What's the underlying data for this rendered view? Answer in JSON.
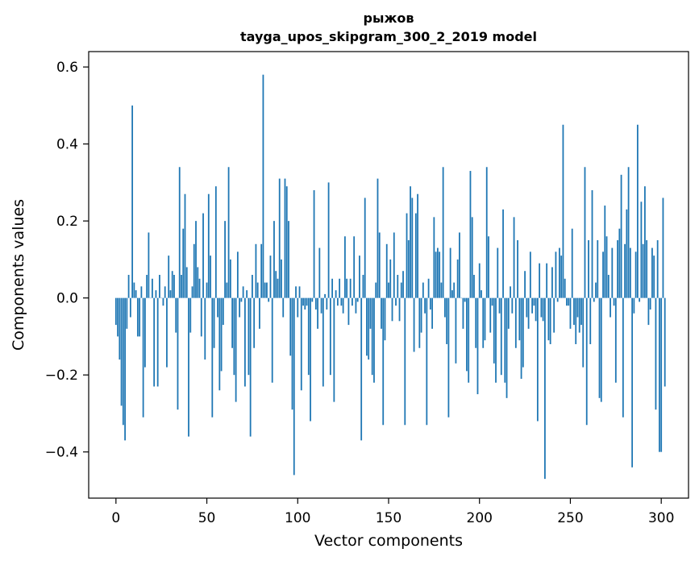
{
  "chart_data": {
    "type": "bar",
    "title_lines": [
      "рыжов",
      "tayga_upos_skipgram_300_2_2019 model"
    ],
    "xlabel": "Vector components",
    "ylabel": "Components values",
    "xlim": [
      -15,
      315
    ],
    "ylim": [
      -0.52,
      0.64
    ],
    "xticks": [
      0,
      50,
      100,
      150,
      200,
      250,
      300
    ],
    "yticks": [
      -0.4,
      -0.2,
      0.0,
      0.2,
      0.4,
      0.6
    ],
    "ytick_labels": [
      "−0.4",
      "−0.2",
      "0.0",
      "0.2",
      "0.4",
      "0.6"
    ],
    "grid": false,
    "bar_color": "#1f77b4",
    "values": [
      -0.07,
      -0.1,
      -0.16,
      -0.28,
      -0.33,
      -0.37,
      -0.08,
      0.06,
      -0.05,
      0.5,
      0.04,
      0.02,
      -0.1,
      -0.1,
      0.03,
      -0.31,
      -0.18,
      0.06,
      0.17,
      0.0,
      0.05,
      -0.23,
      0.02,
      -0.23,
      0.06,
      0.0,
      -0.02,
      0.03,
      -0.18,
      0.11,
      0.02,
      0.07,
      0.06,
      -0.09,
      -0.29,
      0.34,
      0.06,
      0.18,
      0.27,
      0.08,
      -0.36,
      -0.09,
      0.03,
      0.14,
      0.2,
      0.08,
      0.05,
      -0.1,
      0.22,
      -0.16,
      0.04,
      0.27,
      0.11,
      -0.31,
      -0.13,
      0.29,
      -0.05,
      -0.24,
      -0.19,
      -0.07,
      0.2,
      0.04,
      0.34,
      0.1,
      -0.13,
      -0.2,
      -0.27,
      0.12,
      -0.05,
      -0.01,
      0.03,
      -0.23,
      0.02,
      -0.2,
      -0.36,
      0.06,
      -0.13,
      0.14,
      0.04,
      -0.08,
      0.14,
      0.58,
      0.04,
      0.04,
      -0.01,
      0.11,
      -0.22,
      0.2,
      0.07,
      0.05,
      0.31,
      0.1,
      -0.05,
      0.31,
      0.29,
      0.2,
      -0.15,
      -0.29,
      -0.46,
      0.03,
      -0.05,
      0.03,
      -0.24,
      -0.02,
      -0.03,
      -0.02,
      -0.2,
      -0.32,
      -0.01,
      0.28,
      -0.03,
      -0.08,
      0.13,
      -0.04,
      -0.23,
      0.01,
      -0.03,
      0.3,
      -0.2,
      0.05,
      -0.27,
      0.02,
      -0.02,
      0.05,
      -0.02,
      -0.04,
      0.16,
      0.05,
      -0.07,
      0.05,
      -0.02,
      0.16,
      -0.04,
      -0.01,
      0.11,
      -0.37,
      0.06,
      0.26,
      -0.15,
      -0.16,
      -0.08,
      -0.2,
      -0.22,
      0.04,
      0.31,
      0.17,
      -0.08,
      -0.33,
      -0.11,
      0.14,
      0.04,
      0.1,
      -0.06,
      0.17,
      -0.02,
      0.06,
      -0.06,
      0.04,
      0.07,
      -0.33,
      0.22,
      0.15,
      0.29,
      0.26,
      -0.14,
      0.22,
      0.27,
      -0.13,
      -0.09,
      0.04,
      -0.04,
      -0.33,
      0.05,
      -0.03,
      -0.08,
      0.21,
      0.12,
      0.13,
      0.12,
      0.04,
      0.34,
      -0.05,
      -0.12,
      -0.31,
      0.13,
      0.02,
      0.04,
      -0.17,
      0.1,
      0.17,
      0.0,
      -0.08,
      -0.01,
      -0.19,
      -0.22,
      0.33,
      0.21,
      0.06,
      -0.13,
      -0.25,
      0.09,
      0.02,
      -0.13,
      -0.11,
      0.34,
      0.16,
      -0.09,
      -0.02,
      -0.17,
      -0.22,
      0.13,
      -0.04,
      -0.2,
      0.23,
      -0.22,
      -0.26,
      -0.08,
      0.03,
      -0.04,
      0.21,
      -0.13,
      0.15,
      -0.11,
      -0.21,
      -0.18,
      0.07,
      -0.05,
      -0.08,
      0.12,
      -0.04,
      -0.02,
      -0.06,
      -0.32,
      0.09,
      -0.05,
      -0.06,
      -0.47,
      0.09,
      -0.11,
      -0.12,
      0.08,
      -0.09,
      0.12,
      -0.01,
      0.13,
      0.11,
      0.45,
      0.05,
      -0.02,
      -0.02,
      -0.08,
      0.18,
      -0.07,
      -0.12,
      -0.05,
      -0.09,
      -0.07,
      -0.18,
      0.34,
      -0.33,
      0.15,
      -0.12,
      0.28,
      -0.01,
      0.04,
      0.15,
      -0.26,
      -0.27,
      0.12,
      0.24,
      0.16,
      0.06,
      -0.05,
      0.13,
      -0.02,
      -0.22,
      0.15,
      0.18,
      0.32,
      -0.31,
      0.14,
      0.23,
      0.34,
      0.13,
      -0.44,
      -0.04,
      0.12,
      0.45,
      -0.01,
      0.25,
      0.14,
      0.29,
      0.15,
      -0.07,
      -0.03,
      0.13,
      0.11,
      -0.29,
      0.15,
      -0.4,
      -0.4,
      0.26,
      -0.23
    ]
  }
}
